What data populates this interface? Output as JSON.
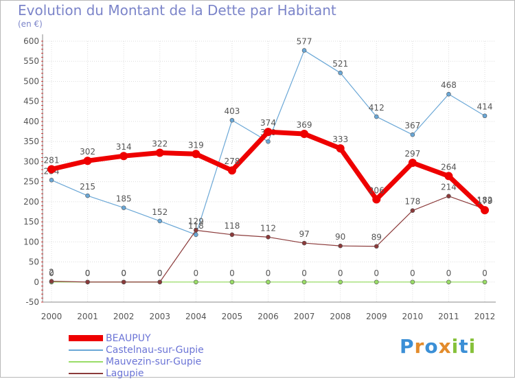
{
  "title": "Evolution du Montant de la Dette par Habitant",
  "subtitle": "(en €)",
  "logo": {
    "text": "Proxiti",
    "letters": [
      "P",
      "r",
      "o",
      "x",
      "i",
      "t",
      "i"
    ],
    "colors": [
      "#3b8fd6",
      "#e38b2b",
      "#3b8fd6",
      "#e38b2b",
      "#86c13a",
      "#3b8fd6",
      "#86c13a"
    ]
  },
  "chart_data": {
    "type": "line",
    "x": [
      "2000",
      "2001",
      "2002",
      "2003",
      "2004",
      "2005",
      "2006",
      "2007",
      "2008",
      "2009",
      "2010",
      "2011",
      "2012"
    ],
    "ylim": [
      -50,
      600
    ],
    "yticks": [
      "-50",
      "0",
      "50",
      "100",
      "150",
      "200",
      "250",
      "300",
      "350",
      "400",
      "450",
      "500",
      "550",
      "600"
    ],
    "grid": true,
    "legend_position": "bottom-left",
    "series": [
      {
        "name": "Castelnau-sur-Gupie",
        "color": "#6aa7d6",
        "values": [
          254,
          215,
          185,
          152,
          118,
          403,
          350,
          577,
          521,
          412,
          367,
          468,
          414
        ],
        "labels": [
          "254",
          "215",
          "185",
          "152",
          "118",
          "403",
          "350",
          "577",
          "521",
          "412",
          "367",
          "468",
          "414"
        ]
      },
      {
        "name": "Mauvezin-sur-Gupie",
        "color": "#99dd66",
        "values": [
          0,
          0,
          0,
          0,
          0,
          0,
          0,
          0,
          0,
          0,
          0,
          0,
          0
        ],
        "labels": [
          "0",
          "0",
          "0",
          "0",
          "0",
          "0",
          "0",
          "0",
          "0",
          "0",
          "0",
          "0",
          "0"
        ]
      },
      {
        "name": "Lagupie",
        "color": "#8b3a3a",
        "values": [
          2,
          0,
          0,
          0,
          129,
          118,
          112,
          97,
          90,
          89,
          178,
          214,
          182
        ],
        "labels": [
          "2",
          "0",
          "0",
          "0",
          "129",
          "118",
          "112",
          "97",
          "90",
          "89",
          "178",
          "214",
          "182"
        ]
      },
      {
        "name": "BEAUPUY",
        "color": "#ee0000",
        "values": [
          281,
          302,
          314,
          322,
          319,
          278,
          374,
          369,
          333,
          206,
          297,
          264,
          179
        ],
        "labels": [
          "281",
          "302",
          "314",
          "322",
          "319",
          "278",
          "374",
          "369",
          "333",
          "206",
          "297",
          "264",
          "179"
        ]
      }
    ],
    "legend_order": [
      "BEAUPUY",
      "Castelnau-sur-Gupie",
      "Mauvezin-sur-Gupie",
      "Lagupie"
    ]
  }
}
